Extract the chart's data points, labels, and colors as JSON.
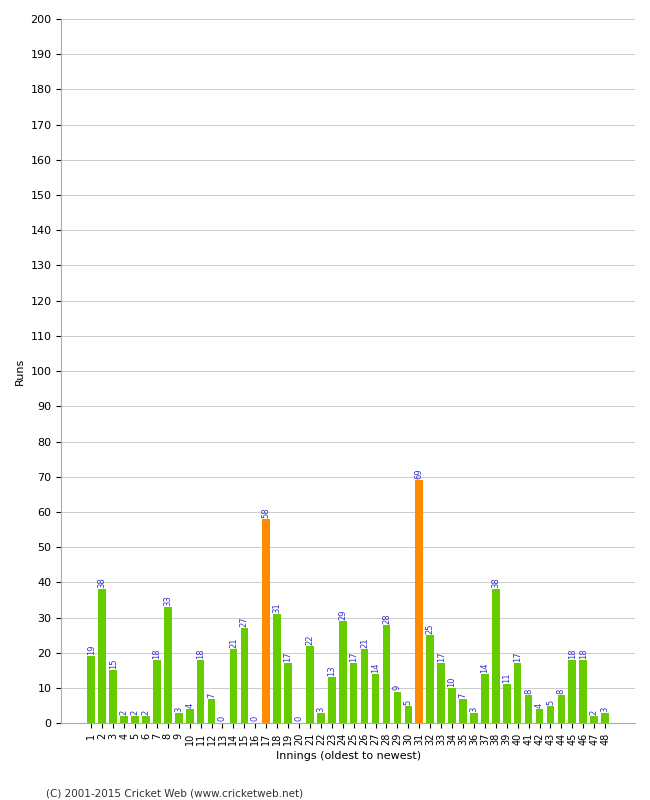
{
  "title": "",
  "xlabel": "Innings (oldest to newest)",
  "ylabel": "Runs",
  "ylim": [
    0,
    200
  ],
  "yticks": [
    0,
    10,
    20,
    30,
    40,
    50,
    60,
    70,
    80,
    90,
    100,
    110,
    120,
    130,
    140,
    150,
    160,
    170,
    180,
    190,
    200
  ],
  "values": [
    19,
    38,
    15,
    2,
    2,
    2,
    18,
    33,
    3,
    4,
    18,
    7,
    0,
    21,
    27,
    0,
    58,
    31,
    17,
    0,
    22,
    3,
    13,
    29,
    17,
    21,
    14,
    28,
    9,
    5,
    69,
    25,
    17,
    10,
    7,
    3,
    14,
    38,
    11,
    17,
    8,
    4,
    5,
    8,
    18,
    18,
    2,
    3
  ],
  "innings": [
    1,
    2,
    3,
    4,
    5,
    6,
    7,
    8,
    9,
    10,
    11,
    12,
    13,
    14,
    15,
    16,
    17,
    18,
    19,
    20,
    21,
    22,
    23,
    24,
    25,
    26,
    27,
    28,
    29,
    30,
    31,
    32,
    33,
    34,
    35,
    36,
    37,
    38,
    39,
    40,
    41,
    42,
    43,
    44,
    45,
    46,
    47,
    48
  ],
  "orange_indices": [
    16,
    30
  ],
  "bar_color_normal": "#66cc00",
  "bar_color_highlight": "#ff8c00",
  "label_color": "#3333cc",
  "background_color": "#ffffff",
  "grid_color": "#cccccc",
  "footer": "(C) 2001-2015 Cricket Web (www.cricketweb.net)",
  "bar_width": 0.7,
  "label_fontsize": 6.0,
  "ylabel_fontsize": 8,
  "xlabel_fontsize": 8,
  "ytick_fontsize": 8,
  "xtick_fontsize": 7
}
